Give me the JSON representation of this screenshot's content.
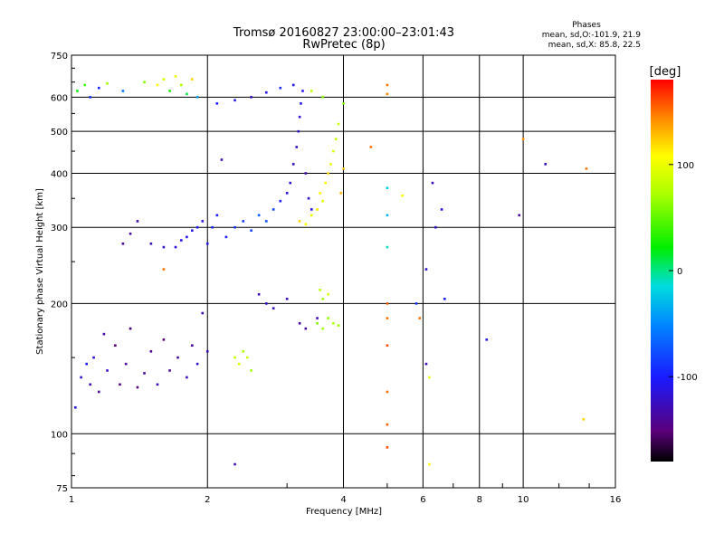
{
  "header": {
    "title": "Tromsø 20160827 23:00:00–23:01:43",
    "subtitle": "RwPretec (8p)",
    "phases_title": "Phases",
    "phases_o": "mean, sd,O:-101.9, 21.9",
    "phases_x": "mean, sd,X:  85.8, 22.5"
  },
  "colorbar": {
    "unit_label": "[deg]",
    "tick_labels": [
      "100",
      "0",
      "-100"
    ],
    "tick_values": [
      100,
      0,
      -100
    ],
    "range": [
      -180,
      180
    ]
  },
  "chart_data": {
    "type": "scatter",
    "title": "Tromsø 20160827 23:00:00–23:01:43",
    "subtitle": "RwPretec (8p)",
    "xlabel": "Frequency [MHz]",
    "ylabel": "Stationary phase Virtual Height [km]",
    "x_scale": "log",
    "y_scale": "log",
    "xlim": [
      1,
      16
    ],
    "ylim": [
      75,
      750
    ],
    "x_ticks": [
      1,
      2,
      4,
      6,
      8,
      10,
      16
    ],
    "x_tick_labels": [
      "1",
      "2",
      "4",
      "6",
      "8",
      "10",
      "16"
    ],
    "y_ticks": [
      75,
      100,
      200,
      300,
      400,
      500,
      600,
      750
    ],
    "y_tick_labels": [
      "75",
      "100",
      "200",
      "300",
      "400",
      "500",
      "600",
      "750"
    ],
    "grid": true,
    "color_encoding": "phase",
    "series": [
      {
        "values": [
          {
            "x": 1.02,
            "y": 115,
            "p": -110
          },
          {
            "x": 1.05,
            "y": 135,
            "p": -120
          },
          {
            "x": 1.08,
            "y": 145,
            "p": -105
          },
          {
            "x": 1.1,
            "y": 130,
            "p": -130
          },
          {
            "x": 1.12,
            "y": 150,
            "p": -115
          },
          {
            "x": 1.15,
            "y": 125,
            "p": -140
          },
          {
            "x": 1.18,
            "y": 170,
            "p": -135
          },
          {
            "x": 1.2,
            "y": 140,
            "p": -125
          },
          {
            "x": 1.25,
            "y": 160,
            "p": -150
          },
          {
            "x": 1.28,
            "y": 130,
            "p": -145
          },
          {
            "x": 1.32,
            "y": 145,
            "p": -140
          },
          {
            "x": 1.35,
            "y": 175,
            "p": -155
          },
          {
            "x": 1.4,
            "y": 128,
            "p": -150
          },
          {
            "x": 1.45,
            "y": 138,
            "p": -135
          },
          {
            "x": 1.5,
            "y": 155,
            "p": -145
          },
          {
            "x": 1.55,
            "y": 130,
            "p": -130
          },
          {
            "x": 1.6,
            "y": 165,
            "p": -150
          },
          {
            "x": 1.65,
            "y": 140,
            "p": -140
          },
          {
            "x": 1.72,
            "y": 150,
            "p": -135
          },
          {
            "x": 1.8,
            "y": 135,
            "p": -125
          },
          {
            "x": 1.85,
            "y": 160,
            "p": -140
          },
          {
            "x": 1.9,
            "y": 145,
            "p": -120
          },
          {
            "x": 1.95,
            "y": 190,
            "p": -130
          },
          {
            "x": 2.0,
            "y": 155,
            "p": -125
          },
          {
            "x": 1.03,
            "y": 620,
            "p": 20
          },
          {
            "x": 1.07,
            "y": 640,
            "p": 40
          },
          {
            "x": 1.1,
            "y": 600,
            "p": -90
          },
          {
            "x": 1.15,
            "y": 630,
            "p": -100
          },
          {
            "x": 1.2,
            "y": 645,
            "p": 70
          },
          {
            "x": 1.3,
            "y": 620,
            "p": -60
          },
          {
            "x": 1.45,
            "y": 650,
            "p": 60
          },
          {
            "x": 1.55,
            "y": 640,
            "p": 110
          },
          {
            "x": 1.6,
            "y": 660,
            "p": 90
          },
          {
            "x": 1.65,
            "y": 620,
            "p": 30
          },
          {
            "x": 1.7,
            "y": 670,
            "p": 100
          },
          {
            "x": 1.75,
            "y": 640,
            "p": 70
          },
          {
            "x": 1.8,
            "y": 610,
            "p": 10
          },
          {
            "x": 1.85,
            "y": 660,
            "p": 120
          },
          {
            "x": 1.9,
            "y": 600,
            "p": -40
          },
          {
            "x": 2.1,
            "y": 580,
            "p": -100
          },
          {
            "x": 2.3,
            "y": 590,
            "p": -110
          },
          {
            "x": 2.5,
            "y": 600,
            "p": -120
          },
          {
            "x": 2.7,
            "y": 615,
            "p": -105
          },
          {
            "x": 2.9,
            "y": 630,
            "p": -95
          },
          {
            "x": 3.1,
            "y": 640,
            "p": -110
          },
          {
            "x": 3.4,
            "y": 620,
            "p": 80
          },
          {
            "x": 3.6,
            "y": 600,
            "p": 60
          },
          {
            "x": 1.3,
            "y": 275,
            "p": -140
          },
          {
            "x": 1.35,
            "y": 290,
            "p": -135
          },
          {
            "x": 1.4,
            "y": 310,
            "p": -130
          },
          {
            "x": 1.5,
            "y": 275,
            "p": -125
          },
          {
            "x": 1.6,
            "y": 270,
            "p": -120
          },
          {
            "x": 1.7,
            "y": 270,
            "p": -115
          },
          {
            "x": 1.75,
            "y": 280,
            "p": -110
          },
          {
            "x": 1.8,
            "y": 285,
            "p": -105
          },
          {
            "x": 1.85,
            "y": 295,
            "p": -110
          },
          {
            "x": 1.9,
            "y": 300,
            "p": -100
          },
          {
            "x": 1.95,
            "y": 310,
            "p": -110
          },
          {
            "x": 2.0,
            "y": 275,
            "p": -105
          },
          {
            "x": 2.05,
            "y": 300,
            "p": -95
          },
          {
            "x": 2.1,
            "y": 320,
            "p": -100
          },
          {
            "x": 2.2,
            "y": 285,
            "p": -100
          },
          {
            "x": 2.3,
            "y": 300,
            "p": -90
          },
          {
            "x": 2.4,
            "y": 310,
            "p": -85
          },
          {
            "x": 2.5,
            "y": 295,
            "p": -80
          },
          {
            "x": 2.6,
            "y": 320,
            "p": -70
          },
          {
            "x": 2.7,
            "y": 310,
            "p": -75
          },
          {
            "x": 2.8,
            "y": 330,
            "p": -80
          },
          {
            "x": 2.9,
            "y": 345,
            "p": -100
          },
          {
            "x": 3.0,
            "y": 360,
            "p": -110
          },
          {
            "x": 3.05,
            "y": 380,
            "p": -115
          },
          {
            "x": 3.1,
            "y": 420,
            "p": -120
          },
          {
            "x": 3.15,
            "y": 460,
            "p": -125
          },
          {
            "x": 3.18,
            "y": 500,
            "p": -120
          },
          {
            "x": 3.2,
            "y": 540,
            "p": -115
          },
          {
            "x": 3.22,
            "y": 580,
            "p": -110
          },
          {
            "x": 3.25,
            "y": 620,
            "p": -105
          },
          {
            "x": 3.3,
            "y": 400,
            "p": -130
          },
          {
            "x": 3.35,
            "y": 350,
            "p": -120
          },
          {
            "x": 3.4,
            "y": 330,
            "p": -110
          },
          {
            "x": 3.2,
            "y": 310,
            "p": 120
          },
          {
            "x": 3.3,
            "y": 305,
            "p": 110
          },
          {
            "x": 3.4,
            "y": 320,
            "p": 100
          },
          {
            "x": 3.5,
            "y": 330,
            "p": 115
          },
          {
            "x": 3.55,
            "y": 360,
            "p": 105
          },
          {
            "x": 3.6,
            "y": 345,
            "p": 95
          },
          {
            "x": 3.65,
            "y": 380,
            "p": 110
          },
          {
            "x": 3.7,
            "y": 400,
            "p": 120
          },
          {
            "x": 3.75,
            "y": 420,
            "p": 100
          },
          {
            "x": 3.8,
            "y": 450,
            "p": 90
          },
          {
            "x": 3.85,
            "y": 480,
            "p": 80
          },
          {
            "x": 3.9,
            "y": 520,
            "p": 85
          },
          {
            "x": 3.95,
            "y": 360,
            "p": 130
          },
          {
            "x": 4.0,
            "y": 410,
            "p": 125
          },
          {
            "x": 4.0,
            "y": 580,
            "p": 60
          },
          {
            "x": 2.3,
            "y": 150,
            "p": 80
          },
          {
            "x": 2.35,
            "y": 145,
            "p": 90
          },
          {
            "x": 2.4,
            "y": 155,
            "p": 75
          },
          {
            "x": 2.45,
            "y": 150,
            "p": 85
          },
          {
            "x": 2.5,
            "y": 140,
            "p": 70
          },
          {
            "x": 2.6,
            "y": 210,
            "p": -130
          },
          {
            "x": 2.7,
            "y": 200,
            "p": -120
          },
          {
            "x": 2.8,
            "y": 195,
            "p": -125
          },
          {
            "x": 3.0,
            "y": 205,
            "p": -130
          },
          {
            "x": 3.2,
            "y": 180,
            "p": -140
          },
          {
            "x": 3.3,
            "y": 175,
            "p": -135
          },
          {
            "x": 3.5,
            "y": 185,
            "p": -130
          },
          {
            "x": 3.5,
            "y": 180,
            "p": 60
          },
          {
            "x": 3.6,
            "y": 175,
            "p": 70
          },
          {
            "x": 3.7,
            "y": 185,
            "p": 65
          },
          {
            "x": 3.8,
            "y": 180,
            "p": 75
          },
          {
            "x": 3.9,
            "y": 178,
            "p": 70
          },
          {
            "x": 3.55,
            "y": 215,
            "p": 80
          },
          {
            "x": 3.6,
            "y": 205,
            "p": 70
          },
          {
            "x": 3.7,
            "y": 210,
            "p": 90
          },
          {
            "x": 4.6,
            "y": 460,
            "p": 150
          },
          {
            "x": 5.0,
            "y": 640,
            "p": 150
          },
          {
            "x": 5.0,
            "y": 610,
            "p": 145
          },
          {
            "x": 5.0,
            "y": 200,
            "p": 155
          },
          {
            "x": 5.0,
            "y": 185,
            "p": 150
          },
          {
            "x": 5.0,
            "y": 160,
            "p": 160
          },
          {
            "x": 5.0,
            "y": 125,
            "p": 150
          },
          {
            "x": 5.0,
            "y": 105,
            "p": 155
          },
          {
            "x": 5.0,
            "y": 93,
            "p": 160
          },
          {
            "x": 5.0,
            "y": 370,
            "p": -20
          },
          {
            "x": 5.0,
            "y": 320,
            "p": -30
          },
          {
            "x": 5.0,
            "y": 270,
            "p": -10
          },
          {
            "x": 5.4,
            "y": 355,
            "p": 110
          },
          {
            "x": 5.8,
            "y": 200,
            "p": -90
          },
          {
            "x": 5.9,
            "y": 185,
            "p": 150
          },
          {
            "x": 6.1,
            "y": 240,
            "p": -120
          },
          {
            "x": 6.1,
            "y": 145,
            "p": -130
          },
          {
            "x": 6.2,
            "y": 135,
            "p": 100
          },
          {
            "x": 6.2,
            "y": 85,
            "p": 110
          },
          {
            "x": 6.3,
            "y": 380,
            "p": -130
          },
          {
            "x": 6.4,
            "y": 300,
            "p": -120
          },
          {
            "x": 6.6,
            "y": 330,
            "p": -110
          },
          {
            "x": 6.7,
            "y": 205,
            "p": -100
          },
          {
            "x": 8.3,
            "y": 165,
            "p": -110
          },
          {
            "x": 9.8,
            "y": 320,
            "p": -140
          },
          {
            "x": 10.0,
            "y": 480,
            "p": 140
          },
          {
            "x": 11.2,
            "y": 420,
            "p": -120
          },
          {
            "x": 13.8,
            "y": 410,
            "p": 150
          },
          {
            "x": 13.6,
            "y": 108,
            "p": 120
          },
          {
            "x": 2.15,
            "y": 430,
            "p": -130
          },
          {
            "x": 2.3,
            "y": 85,
            "p": -130
          },
          {
            "x": 1.6,
            "y": 240,
            "p": 150
          }
        ]
      }
    ]
  }
}
